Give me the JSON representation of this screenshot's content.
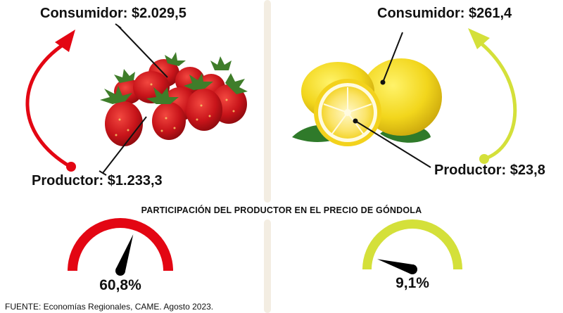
{
  "strawberry": {
    "consumer_label": "Consumidor: $2.029,5",
    "producer_label": "Productor: $1.233,3",
    "share_label": "60,8%",
    "share_fraction": 0.608,
    "color": "#e30613"
  },
  "lemon": {
    "consumer_label": "Consumidor: $261,4",
    "producer_label": "Productor: $23,8",
    "share_label": "9,1%",
    "share_fraction": 0.091,
    "color": "#d4e03a"
  },
  "section_title": "PARTICIPACIÓN DEL PRODUCTOR EN EL PRECIO DE GÓNDOLA",
  "source": "FUENTE: Economías Regionales, CAME. Agosto 2023."
}
